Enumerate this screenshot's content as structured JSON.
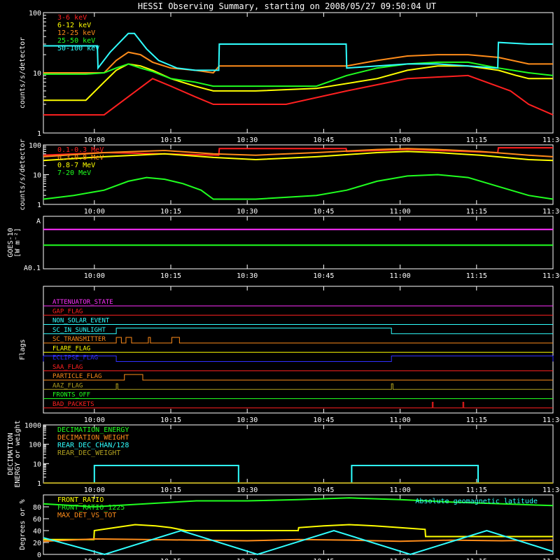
{
  "title": "HESSI Observing Summary, starting on 2008/05/27 09:50:04 UT",
  "colors": {
    "axis": "#ffffff",
    "red": "#ff2020",
    "orange": "#ff8c1a",
    "yellow": "#ffff00",
    "green": "#20ff20",
    "cyan": "#30ffff",
    "magenta": "#ff30ff",
    "blue": "#3030ff",
    "olive": "#b0a020",
    "lt_orange": "#ffaa40"
  },
  "chart_data": [
    {
      "type": "line",
      "panel": "lightcurves-low",
      "ylabel": "counts/s/detector",
      "ylim": [
        1,
        100
      ],
      "log": true,
      "yticks": [
        "1",
        "10",
        "100"
      ],
      "xlim": [
        "09:50",
        "11:30"
      ],
      "xticks": [
        "10:00",
        "10:15",
        "10:30",
        "10:45",
        "11:00",
        "11:15",
        "11:30"
      ],
      "legend": [
        "3-6 keV",
        "6-12 keV",
        "12-25 keV",
        "25-50 keV",
        "50-100 keV"
      ],
      "series": [
        {
          "name": "3-6 keV",
          "color": "red",
          "x": [
            0,
            7,
            10,
            14,
            18,
            21,
            25,
            28,
            32,
            40,
            50,
            60,
            70,
            77,
            80,
            84
          ],
          "y": [
            2,
            2,
            2,
            4,
            8,
            6,
            4,
            3,
            3,
            3,
            5,
            8,
            9,
            5,
            3,
            2
          ]
        },
        {
          "name": "6-12 keV",
          "color": "yellow",
          "x": [
            0,
            7,
            10,
            12,
            14,
            16,
            18,
            21,
            25,
            28,
            35,
            45,
            55,
            60,
            65,
            70,
            75,
            78,
            80,
            84
          ],
          "y": [
            3.5,
            3.5,
            7,
            11,
            14,
            13,
            11,
            8,
            6,
            5,
            5,
            5.5,
            8,
            11,
            13,
            13,
            11,
            9,
            8,
            8
          ]
        },
        {
          "name": "12-25 keV",
          "color": "orange",
          "x": [
            0,
            7,
            10,
            12,
            14,
            16,
            18,
            21,
            25,
            28,
            29,
            35,
            45,
            50,
            55,
            60,
            65,
            70,
            75,
            80,
            84
          ],
          "y": [
            10,
            10,
            10,
            16,
            22,
            20,
            15,
            12,
            11,
            10,
            13,
            13,
            13,
            13,
            16,
            19,
            20,
            20,
            18,
            14,
            14
          ]
        },
        {
          "name": "25-50 keV",
          "color": "green",
          "x": [
            0,
            7,
            10,
            12,
            14,
            16,
            18,
            21,
            25,
            28,
            35,
            45,
            50,
            55,
            60,
            65,
            70,
            75,
            80,
            84
          ],
          "y": [
            9.5,
            9.5,
            10,
            12,
            14,
            12,
            10.5,
            8,
            7,
            6,
            6,
            6,
            9,
            12,
            14,
            15,
            15,
            12,
            10,
            9
          ]
        },
        {
          "name": "50-100 keV",
          "color": "cyan",
          "x": [
            0,
            8.9,
            9,
            11,
            14,
            15,
            17,
            19,
            22,
            25,
            28,
            28.9,
            29,
            40,
            49.9,
            50,
            55,
            60,
            65,
            70,
            74.9,
            75,
            80,
            84
          ],
          "y": [
            28,
            28,
            12,
            22,
            45,
            45,
            25,
            16,
            12,
            11,
            11,
            11,
            30,
            30,
            30,
            12,
            13,
            14,
            14,
            13,
            12,
            32,
            30,
            30
          ]
        }
      ]
    },
    {
      "type": "line",
      "panel": "lightcurves-high",
      "ylabel": "counts/s/detector",
      "ylim": [
        1,
        100
      ],
      "log": true,
      "yticks": [
        "1",
        "10",
        "100"
      ],
      "xlim": [
        "09:50",
        "11:30"
      ],
      "xticks": [
        "10:00",
        "10:15",
        "10:30",
        "10:45",
        "11:00",
        "11:15",
        "11:30"
      ],
      "legend": [
        "0.1-0.3 MeV",
        "0.3-0.8 MeV",
        "0.8-7 MeV",
        "7-20 MeV"
      ],
      "series": [
        {
          "name": "0.1-0.3 MeV",
          "color": "red",
          "x": [
            0,
            10,
            20,
            28.9,
            29,
            40,
            49.9,
            50,
            60,
            74.9,
            75,
            84
          ],
          "y": [
            45,
            55,
            50,
            45,
            75,
            75,
            75,
            60,
            70,
            55,
            80,
            80
          ]
        },
        {
          "name": "0.3-0.8 MeV",
          "color": "orange",
          "x": [
            0,
            10,
            20,
            28,
            35,
            45,
            55,
            60,
            65,
            72,
            80,
            84
          ],
          "y": [
            40,
            55,
            65,
            50,
            45,
            55,
            70,
            75,
            70,
            60,
            45,
            40
          ]
        },
        {
          "name": "0.8-7 MeV",
          "color": "yellow",
          "x": [
            0,
            10,
            20,
            28,
            35,
            45,
            55,
            60,
            65,
            72,
            80,
            84
          ],
          "y": [
            30,
            40,
            50,
            38,
            32,
            40,
            55,
            60,
            55,
            45,
            32,
            30
          ]
        },
        {
          "name": "7-20 MeV",
          "color": "green",
          "x": [
            0,
            5,
            10,
            14,
            17,
            20,
            23,
            26,
            28,
            35,
            45,
            50,
            55,
            60,
            65,
            70,
            75,
            80,
            84
          ],
          "y": [
            1.5,
            2,
            3,
            6,
            8,
            7,
            5,
            3,
            1.5,
            1.5,
            2,
            3,
            6,
            9,
            10,
            8,
            4,
            2,
            1.5
          ]
        }
      ]
    },
    {
      "type": "line",
      "panel": "goes",
      "ylabel_lines": [
        "GOES-10",
        "[W m⁻²]"
      ],
      "yticks": [
        "A",
        "A0.1"
      ],
      "xlim": [
        "09:50",
        "11:30"
      ],
      "xticks": [
        "10:00",
        "10:15",
        "10:30",
        "10:45",
        "11:00",
        "11:15",
        "11:30"
      ],
      "series": [
        {
          "name": "",
          "color": "magenta",
          "x": [
            0,
            100
          ],
          "y": [
            0.75,
            0.75
          ]
        },
        {
          "name": "",
          "color": "green",
          "x": [
            0,
            100
          ],
          "y": [
            0.45,
            0.45
          ]
        }
      ]
    },
    {
      "type": "line",
      "panel": "flags",
      "ylabel": "Flags",
      "xlim": [
        "09:50",
        "11:30"
      ],
      "xticks": [
        "10:00",
        "10:15",
        "10:30",
        "10:45",
        "11:00",
        "11:15",
        "11:30"
      ],
      "flags": [
        {
          "name": "ATTENUATOR_STATE",
          "color": "magenta",
          "on": []
        },
        {
          "name": "GAP_FLAG",
          "color": "red",
          "on": []
        },
        {
          "name": "NON_SOLAR_EVENT",
          "color": "cyan",
          "on": []
        },
        {
          "name": "SC_IN_SUNLIGHT",
          "color": "cyan",
          "on": [
            [
              14.3,
              68.3
            ]
          ]
        },
        {
          "name": "SC_TRANSMITTER",
          "color": "orange",
          "on": [
            [
              14.3,
              15.3
            ],
            [
              16.2,
              17.3
            ],
            [
              20.6,
              21.0
            ],
            [
              25.2,
              26.7
            ]
          ]
        },
        {
          "name": "FLARE_FLAG",
          "color": "yellow",
          "on": []
        },
        {
          "name": "ECLIPSE_FLAG",
          "color": "blue",
          "on": [
            [
              0,
              14.3
            ],
            [
              68.3,
              100
            ]
          ]
        },
        {
          "name": "SAA_FLAG",
          "color": "red",
          "on": []
        },
        {
          "name": "PARTICLE_FLAG",
          "color": "orange",
          "on": [
            [
              15.9,
              19.5
            ]
          ]
        },
        {
          "name": "AAZ_FLAG",
          "color": "olive",
          "on": [
            [
              14.3,
              14.6
            ],
            [
              68.3,
              68.6
            ]
          ]
        },
        {
          "name": "FRONTS_OFF",
          "color": "green",
          "on": []
        },
        {
          "name": "BAD_PACKETS",
          "color": "red",
          "on": [
            [
              76.3,
              76.5
            ],
            [
              82.3,
              82.5
            ]
          ]
        }
      ]
    },
    {
      "type": "line",
      "panel": "decimation",
      "ylabel_lines": [
        "DECIMATION",
        "ENERGY or weight"
      ],
      "ylim": [
        1,
        1000
      ],
      "log": true,
      "yticks": [
        "1",
        "10",
        "100",
        "1000"
      ],
      "xlim": [
        "09:50",
        "11:30"
      ],
      "xticks": [
        "10:00",
        "10:15",
        "10:30",
        "10:45",
        "11:00",
        "11:15",
        "11:30"
      ],
      "legend": [
        "DECIMATION_ENERGY",
        "DECIMATION_WEIGHT",
        "REAR_DEC_CHAN/128",
        "REAR_DEC_WEIGHT"
      ],
      "series": [
        {
          "name": "DECIMATION_ENERGY",
          "color": "green",
          "x": [],
          "y": []
        },
        {
          "name": "DECIMATION_WEIGHT",
          "color": "orange",
          "x": [],
          "y": []
        },
        {
          "name": "REAR_DEC_CHAN/128",
          "color": "cyan",
          "x": [
            0,
            10,
            10,
            38.3,
            38.3,
            60.5,
            60.5,
            85.3,
            85.3,
            100
          ],
          "y": [
            1,
            1,
            8,
            8,
            1,
            1,
            8,
            8,
            1,
            1
          ]
        },
        {
          "name": "REAR_DEC_WEIGHT",
          "color": "olive",
          "x": [
            0,
            100
          ],
          "y": [
            1,
            1
          ]
        }
      ]
    },
    {
      "type": "line",
      "panel": "geomagnetic",
      "ylabel": "Degrees or %",
      "ylim": [
        0,
        100
      ],
      "yticks": [
        "0",
        "20",
        "40",
        "60",
        "80"
      ],
      "xlim": [
        "09:50",
        "11:30"
      ],
      "xticks": [
        "10:00",
        "10:15",
        "10:30",
        "10:45",
        "11:00",
        "11:15",
        "11:30"
      ],
      "legend": [
        "FRONT_RATIO",
        "FRONT_RATIO_1225",
        "MAX_DET_VS_TOT"
      ],
      "annotation": "Absolute geomagnetic latitude",
      "series": [
        {
          "name": "FRONT_RATIO",
          "color": "yellow",
          "x": [
            0,
            9.9,
            10,
            14,
            18,
            22,
            25,
            28,
            29,
            50,
            50.1,
            55,
            60,
            65,
            70,
            74.9,
            75,
            100
          ],
          "y": [
            25,
            25,
            40,
            45,
            50,
            48,
            45,
            40,
            40,
            40,
            45,
            48,
            50,
            48,
            45,
            42,
            30,
            30
          ]
        },
        {
          "name": "FRONT_RATIO_1225",
          "color": "green",
          "x": [
            0,
            10,
            20,
            30,
            40,
            50,
            60,
            70,
            80,
            90,
            100
          ],
          "y": [
            85,
            80,
            85,
            90,
            90,
            92,
            95,
            92,
            88,
            85,
            82
          ]
        },
        {
          "name": "MAX_DET_VS_TOT",
          "color": "orange",
          "x": [
            0,
            10,
            20,
            30,
            40,
            50,
            60,
            70,
            80,
            90,
            100
          ],
          "y": [
            22,
            26,
            25,
            24,
            23,
            25,
            24,
            22,
            24,
            23,
            24
          ]
        },
        {
          "name": "",
          "color": "cyan",
          "x": [
            0,
            12,
            27,
            42,
            57,
            72,
            87,
            100
          ],
          "y": [
            28,
            0,
            40,
            0,
            40,
            0,
            40,
            5
          ]
        }
      ]
    }
  ]
}
